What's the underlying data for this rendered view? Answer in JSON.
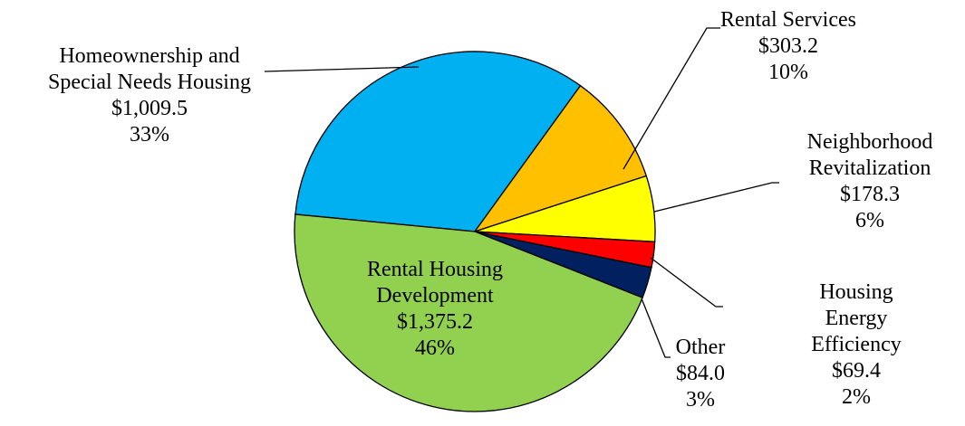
{
  "chart_data": {
    "type": "pie",
    "categories": [
      "Homeownership and\nSpecial Needs Housing",
      "Rental Services",
      "Neighborhood\nRevitalization",
      "Housing Energy\nEfficiency",
      "Other",
      "Rental Housing\nDevelopment"
    ],
    "values": [
      1009.5,
      303.2,
      178.3,
      69.4,
      84.0,
      1375.2
    ],
    "value_labels": [
      "$1,009.5",
      "$303.2",
      "$178.3",
      "$69.4",
      "$84.0",
      "$1,375.2"
    ],
    "percentages": [
      33,
      10,
      6,
      2,
      3,
      46
    ],
    "percentage_labels": [
      "33%",
      "10%",
      "6%",
      "2%",
      "3%",
      "46%"
    ],
    "colors": [
      "#00b0f0",
      "#ffc000",
      "#ffff00",
      "#ff0000",
      "#002060",
      "#92d050"
    ]
  }
}
